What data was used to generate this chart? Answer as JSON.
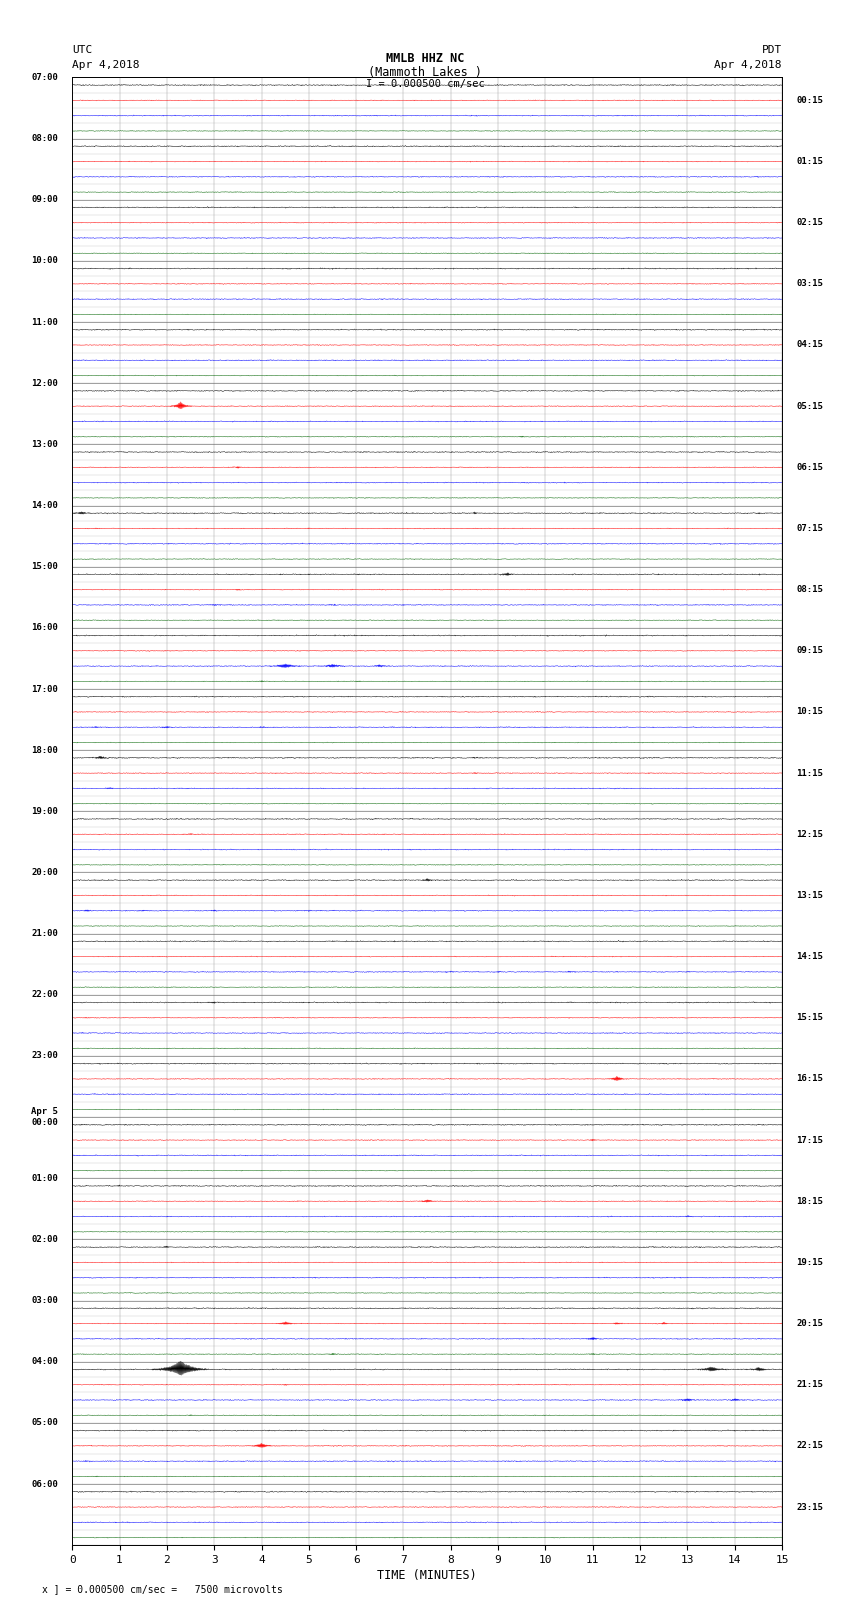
{
  "title_line1": "MMLB HHZ NC",
  "title_line2": "(Mammoth Lakes )",
  "title_line3": "I = 0.000500 cm/sec",
  "left_header_line1": "UTC",
  "left_header_line2": "Apr 4,2018",
  "right_header_line1": "PDT",
  "right_header_line2": "Apr 4,2018",
  "xlabel": "TIME (MINUTES)",
  "footer": "x ] = 0.000500 cm/sec =   7500 microvolts",
  "time_axis_max": 15,
  "bg_color": "#ffffff",
  "trace_colors": [
    "#000000",
    "#ff0000",
    "#0000ff",
    "#006400"
  ],
  "fig_width": 8.5,
  "fig_height": 16.13,
  "left_label_utc_times": [
    "07:00",
    "08:00",
    "09:00",
    "10:00",
    "11:00",
    "12:00",
    "13:00",
    "14:00",
    "15:00",
    "16:00",
    "17:00",
    "18:00",
    "19:00",
    "20:00",
    "21:00",
    "22:00",
    "23:00",
    "Apr 5\n00:00",
    "01:00",
    "02:00",
    "03:00",
    "04:00",
    "05:00",
    "06:00"
  ],
  "right_label_pdt_times": [
    "00:15",
    "01:15",
    "02:15",
    "03:15",
    "04:15",
    "05:15",
    "06:15",
    "07:15",
    "08:15",
    "09:15",
    "10:15",
    "11:15",
    "12:15",
    "13:15",
    "14:15",
    "15:15",
    "16:15",
    "17:15",
    "18:15",
    "19:15",
    "20:15",
    "21:15",
    "22:15",
    "23:15"
  ],
  "num_hour_blocks": 24,
  "traces_per_hour": 4
}
